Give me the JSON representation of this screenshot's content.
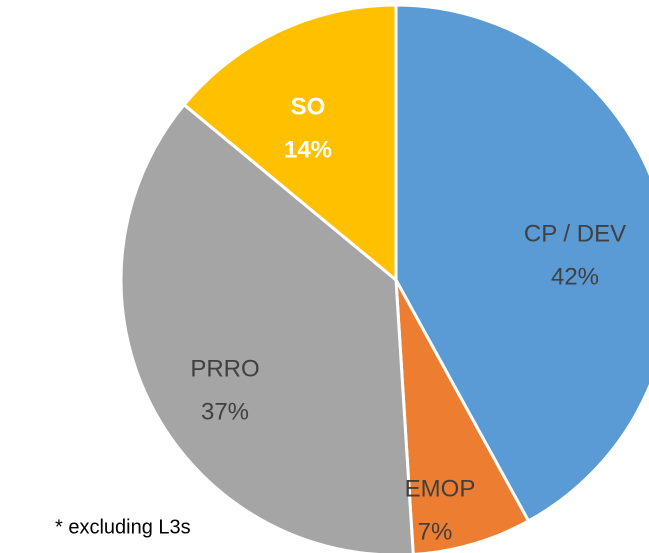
{
  "chart_data": {
    "type": "pie",
    "categories": [
      "CP / DEV",
      "EMOP",
      "PRRO",
      "SO"
    ],
    "values": [
      42,
      7,
      37,
      14
    ],
    "value_labels": [
      "42%",
      "7%",
      "37%",
      "14%"
    ],
    "colors": [
      "#5b9bd5",
      "#ed7d31",
      "#a5a5a5",
      "#ffc000"
    ],
    "annotation": "* excluding L3s"
  }
}
